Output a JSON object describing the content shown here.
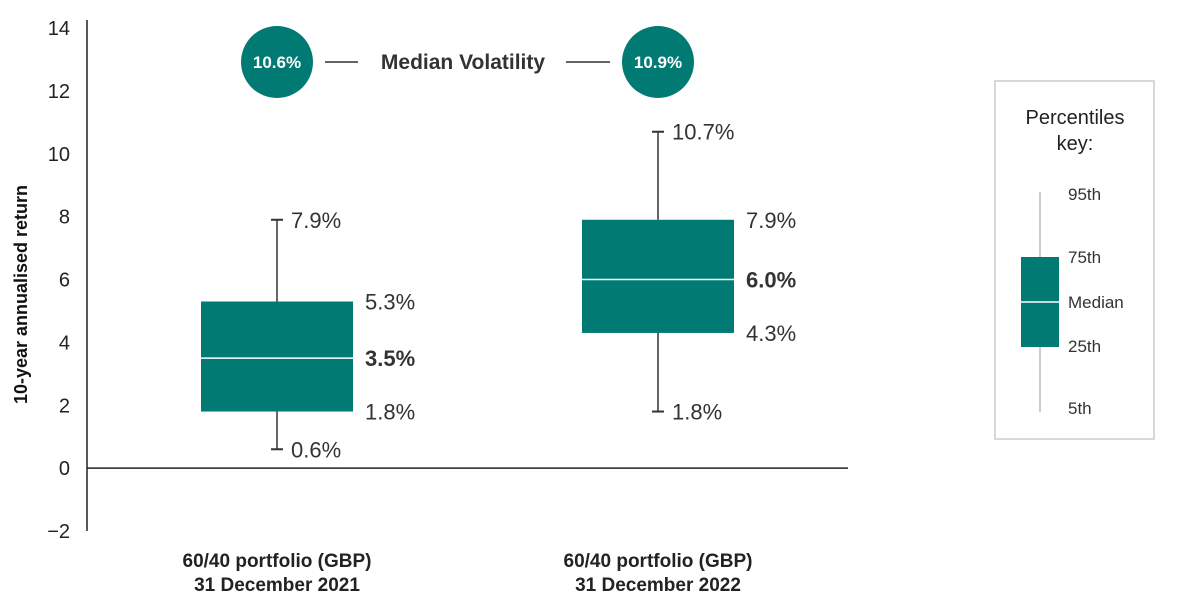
{
  "chart_data": {
    "type": "box",
    "ylabel": "10-year annualised return",
    "ylim": [
      -2,
      14
    ],
    "yticks": [
      -2,
      0,
      2,
      4,
      6,
      8,
      10,
      12,
      14
    ],
    "ytick_labels": [
      "−2",
      "0",
      "2",
      "4",
      "6",
      "8",
      "10",
      "12",
      "14"
    ],
    "grid": false,
    "box_color": "#007A73",
    "categories": [
      {
        "line1": "60/40 portfolio (GBP)",
        "line2": "31 December 2021"
      },
      {
        "line1": "60/40 portfolio (GBP)",
        "line2": "31 December 2022"
      }
    ],
    "boxes": [
      {
        "p5": 0.6,
        "p25": 1.8,
        "median": 3.5,
        "p75": 5.3,
        "p95": 7.9,
        "labels": {
          "p5": "0.6%",
          "p25": "1.8%",
          "median": "3.5%",
          "p75": "5.3%",
          "p95": "7.9%"
        }
      },
      {
        "p5": 1.8,
        "p25": 4.3,
        "median": 6.0,
        "p75": 7.9,
        "p95": 10.7,
        "labels": {
          "p5": "1.8%",
          "p25": "4.3%",
          "median": "6.0%",
          "p75": "7.9%",
          "p95": "10.7%"
        }
      }
    ],
    "volatility": {
      "title": "Median Volatility",
      "values": [
        "10.6%",
        "10.9%"
      ]
    },
    "legend": {
      "title_line1": "Percentiles",
      "title_line2": "key:",
      "placement": "right",
      "labels": {
        "p95": "95th",
        "p75": "75th",
        "median": "Median",
        "p25": "25th",
        "p5": "5th"
      }
    }
  }
}
